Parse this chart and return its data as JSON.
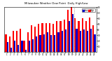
{
  "title1": "Milwaukee Weather Dew Point",
  "title2": "Daily High/Low",
  "bar_width": 0.42,
  "background_color": "#ffffff",
  "high_color": "#ff0000",
  "low_color": "#0000cc",
  "legend_high": "High",
  "legend_low": "Low",
  "categories": [
    "1",
    "2",
    "3",
    "4",
    "5",
    "6",
    "7",
    "8",
    "9",
    "10",
    "11",
    "12",
    "13",
    "14",
    "15",
    "16",
    "17",
    "18",
    "19",
    "20",
    "21",
    "22",
    "23",
    "24",
    "25"
  ],
  "high_values": [
    32,
    28,
    38,
    38,
    42,
    20,
    35,
    48,
    45,
    50,
    52,
    52,
    52,
    50,
    55,
    55,
    58,
    75,
    80,
    60,
    55,
    60,
    55,
    62,
    48
  ],
  "low_values": [
    18,
    8,
    20,
    12,
    20,
    4,
    20,
    22,
    28,
    30,
    32,
    35,
    30,
    30,
    35,
    38,
    40,
    55,
    68,
    42,
    38,
    40,
    38,
    42,
    32
  ],
  "ylim": [
    0,
    80
  ],
  "yticks": [
    10,
    20,
    30,
    40,
    50,
    60,
    70,
    80
  ],
  "vline_positions": [
    17.5,
    18.5
  ],
  "figsize": [
    1.6,
    0.87
  ],
  "dpi": 100
}
